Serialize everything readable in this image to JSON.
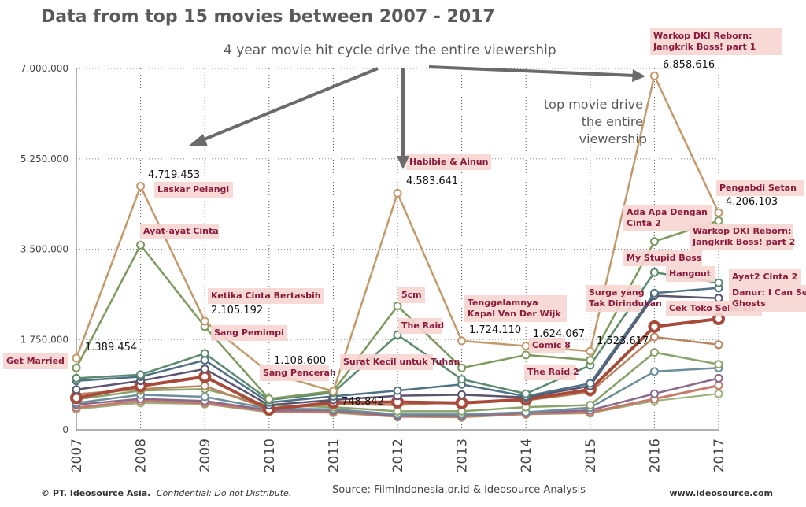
{
  "title": "Data from top 15 movies between 2007 - 2017",
  "subtitle": "4 year movie hit cycle drive the entire viewership",
  "annotation_lines": [
    "top movie drive",
    "the entire",
    "viewership"
  ],
  "footer": {
    "copyright": "© PT. Ideosource Asia.",
    "confidential": "Confidential: Do not Distribute.",
    "source": "Source: FilmIndonesia.or.id & Ideosource Analysis",
    "website": "www.ideosource.com"
  },
  "chart_data": {
    "type": "line",
    "title": "Data from top 15 movies between 2007 - 2017",
    "x": [
      "2007",
      "2008",
      "2009",
      "2010",
      "2011",
      "2012",
      "2013",
      "2014",
      "2015",
      "2016",
      "2017"
    ],
    "ylim": [
      0,
      7000000
    ],
    "yticks": [
      0,
      1750000,
      3500000,
      5250000,
      7000000
    ],
    "ytick_labels": [
      "0",
      "1.750.000",
      "3.500.000",
      "5.250.000",
      "7.000.000"
    ],
    "grid": "vertical dotted",
    "series": [
      {
        "color": "#c49a6c",
        "values": [
          1389454,
          4719453,
          2105192,
          1108600,
          748842,
          4583641,
          1724110,
          1624067,
          1523617,
          6858616,
          4206103
        ]
      },
      {
        "color": "#7d9a5e",
        "values": [
          1200000,
          3580000,
          2000000,
          600000,
          750000,
          2400000,
          1200000,
          1450000,
          1350000,
          3650000,
          4050000
        ]
      },
      {
        "color": "#5c8a6e",
        "values": [
          1000000,
          1070000,
          1480000,
          580000,
          720000,
          1840000,
          980000,
          700000,
          1250000,
          3050000,
          2850000
        ]
      },
      {
        "color": "#4e7183",
        "values": [
          950000,
          1030000,
          1350000,
          530000,
          650000,
          760000,
          880000,
          650000,
          900000,
          2650000,
          2750000
        ]
      },
      {
        "color": "#5b5470",
        "values": [
          780000,
          950000,
          1180000,
          480000,
          580000,
          660000,
          680000,
          630000,
          850000,
          2600000,
          2550000
        ]
      },
      {
        "color": "#a84a3a",
        "values": [
          620000,
          850000,
          1030000,
          400000,
          530000,
          540000,
          520000,
          590000,
          780000,
          2000000,
          2150000
        ]
      },
      {
        "color": "#b8835e",
        "values": [
          690000,
          790000,
          850000,
          400000,
          500000,
          480000,
          540000,
          570000,
          730000,
          1800000,
          1650000
        ]
      },
      {
        "color": "#8aa36a",
        "values": [
          590000,
          760000,
          790000,
          480000,
          440000,
          360000,
          360000,
          440000,
          480000,
          1500000,
          1270000
        ]
      },
      {
        "color": "#6d8f9b",
        "values": [
          520000,
          680000,
          640000,
          410000,
          400000,
          300000,
          300000,
          340000,
          430000,
          1130000,
          1200000
        ]
      },
      {
        "color": "#8a6a8a",
        "values": [
          490000,
          600000,
          560000,
          380000,
          380000,
          270000,
          270000,
          330000,
          380000,
          700000,
          1000000
        ]
      },
      {
        "color": "#c47a6a",
        "values": [
          430000,
          560000,
          520000,
          360000,
          350000,
          260000,
          260000,
          310000,
          340000,
          600000,
          860000
        ]
      },
      {
        "color": "#9bb07a",
        "values": [
          400000,
          520000,
          500000,
          340000,
          330000,
          250000,
          240000,
          300000,
          320000,
          560000,
          700000
        ]
      }
    ],
    "value_labels": [
      {
        "xi": 0,
        "text": "1.389.454"
      },
      {
        "xi": 1,
        "text": "4.719.453"
      },
      {
        "xi": 2,
        "text": "2.105.192"
      },
      {
        "xi": 3,
        "text": "1.108.600"
      },
      {
        "xi": 4,
        "text": "748.842"
      },
      {
        "xi": 5,
        "text": "4.583.641"
      },
      {
        "xi": 6,
        "text": "1.724.110"
      },
      {
        "xi": 7,
        "text": "1.624.067"
      },
      {
        "xi": 8,
        "text": "1.523.617"
      },
      {
        "xi": 9,
        "text": "6.858.616"
      },
      {
        "xi": 10,
        "text": "4.206.103"
      }
    ],
    "movie_labels": [
      {
        "lines": [
          "Get Married"
        ]
      },
      {
        "lines": [
          "Laskar Pelangi"
        ]
      },
      {
        "lines": [
          "Ayat-ayat Cinta"
        ]
      },
      {
        "lines": [
          "Ketika Cinta Bertasbih"
        ]
      },
      {
        "lines": [
          "Sang Pemimpi"
        ]
      },
      {
        "lines": [
          "Sang Pencerah"
        ]
      },
      {
        "lines": [
          "Surat Kecil untuk Tuhan"
        ]
      },
      {
        "lines": [
          "Habibie & Ainun"
        ]
      },
      {
        "lines": [
          "5cm"
        ]
      },
      {
        "lines": [
          "The Raid"
        ]
      },
      {
        "lines": [
          "Tenggelamnya",
          "Kapal Van Der Wijk"
        ]
      },
      {
        "lines": [
          "Comic 8"
        ]
      },
      {
        "lines": [
          "The Raid 2"
        ]
      },
      {
        "lines": [
          "Surga yang",
          "Tak Dirindukan"
        ]
      },
      {
        "lines": [
          "Warkop DKI Reborn:",
          "Jangkrik Boss! part 1"
        ]
      },
      {
        "lines": [
          "Ada Apa Dengan",
          "Cinta 2"
        ]
      },
      {
        "lines": [
          "My Stupid Boss"
        ]
      },
      {
        "lines": [
          "Hangout"
        ]
      },
      {
        "lines": [
          "Cek Toko Sebelah"
        ]
      },
      {
        "lines": [
          "Pengabdi Setan"
        ]
      },
      {
        "lines": [
          "Warkop DKI Reborn:",
          "Jangkrik Boss! part 2"
        ]
      },
      {
        "lines": [
          "Ayat2 Cinta 2"
        ]
      },
      {
        "lines": [
          "Danur: I Can See",
          "Ghosts"
        ]
      }
    ]
  }
}
